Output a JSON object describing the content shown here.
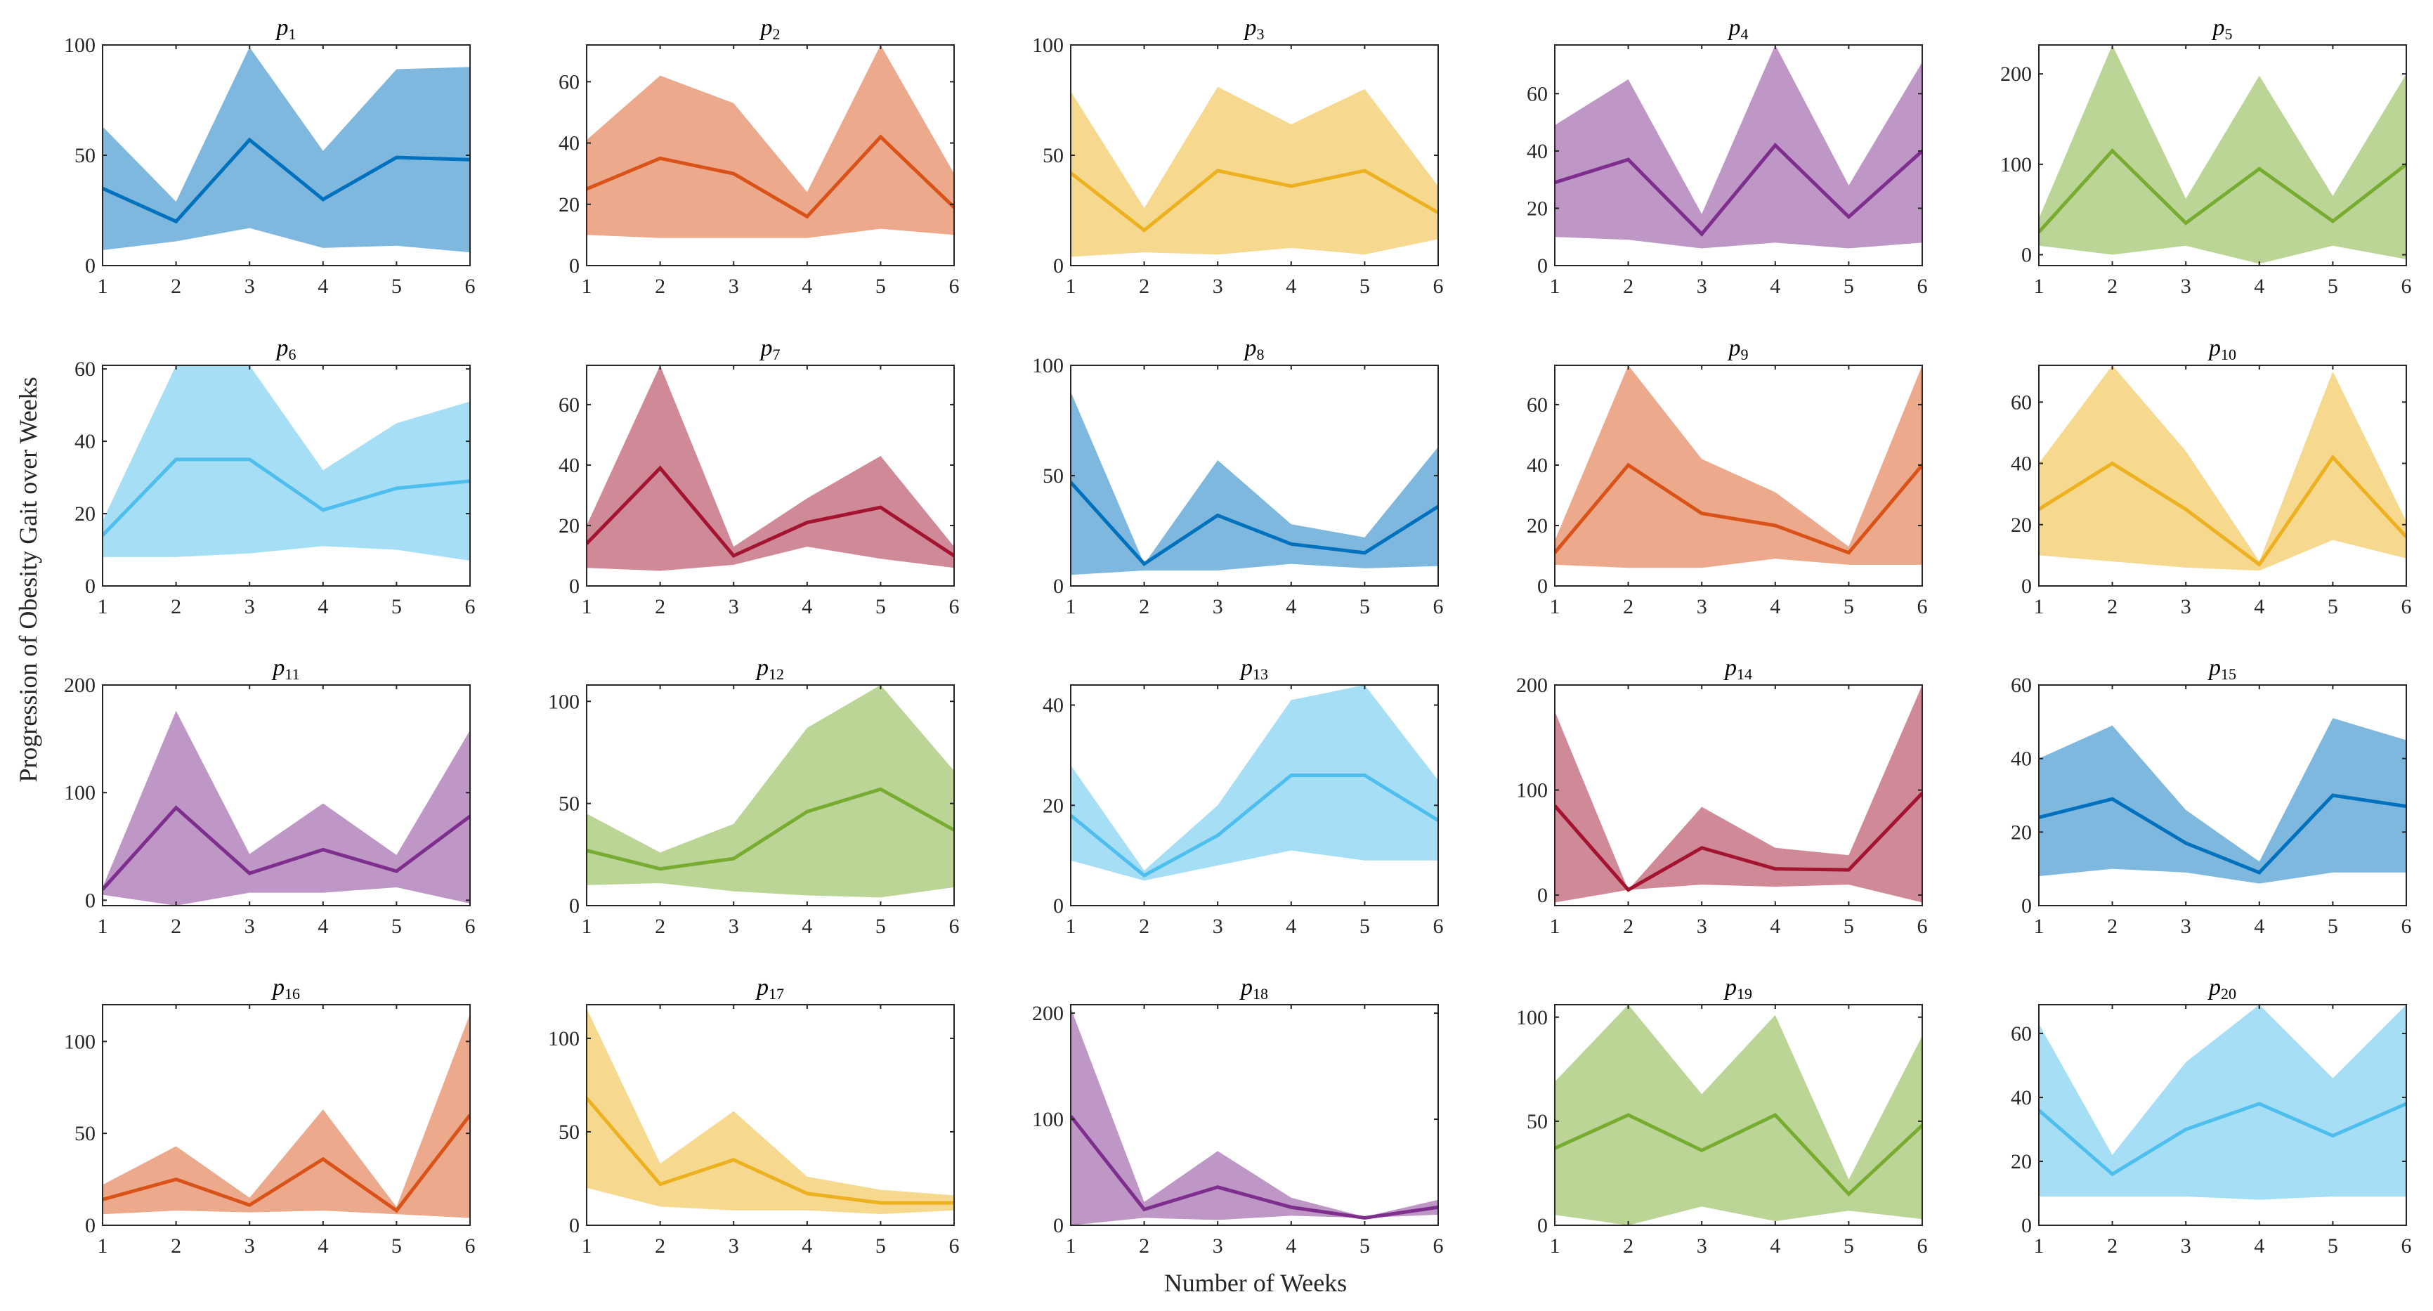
{
  "figure": {
    "ylabel": "Progression of Obesity Gait over Weeks",
    "xlabel": "Number of Weeks"
  },
  "palette": [
    "#0072BD",
    "#D95319",
    "#EDB120",
    "#7E2F8E",
    "#77AC30",
    "#4DBEEE",
    "#A2142F"
  ],
  "chart_data": [
    {
      "type": "area",
      "title": "p",
      "subscript": "1",
      "color_index": 0,
      "x": [
        1,
        2,
        3,
        4,
        5,
        6
      ],
      "ylim": [
        0,
        100
      ],
      "yticks": [
        0,
        50,
        100
      ],
      "mean": [
        35,
        20,
        57,
        30,
        49,
        48
      ],
      "lower": [
        7,
        11,
        17,
        8,
        9,
        6
      ],
      "upper": [
        63,
        29,
        99,
        52,
        89,
        90
      ]
    },
    {
      "type": "area",
      "title": "p",
      "subscript": "2",
      "color_index": 1,
      "x": [
        1,
        2,
        3,
        4,
        5,
        6
      ],
      "ylim": [
        0,
        72
      ],
      "yticks": [
        0,
        20,
        40,
        60
      ],
      "mean": [
        25,
        35,
        30,
        16,
        42,
        19
      ],
      "lower": [
        10,
        9,
        9,
        9,
        12,
        10
      ],
      "upper": [
        41,
        62,
        53,
        24,
        72,
        30
      ]
    },
    {
      "type": "area",
      "title": "p",
      "subscript": "3",
      "color_index": 2,
      "x": [
        1,
        2,
        3,
        4,
        5,
        6
      ],
      "ylim": [
        0,
        100
      ],
      "yticks": [
        0,
        50,
        100
      ],
      "mean": [
        42,
        16,
        43,
        36,
        43,
        24
      ],
      "lower": [
        4,
        6,
        5,
        8,
        5,
        12
      ],
      "upper": [
        79,
        26,
        81,
        64,
        80,
        36
      ]
    },
    {
      "type": "area",
      "title": "p",
      "subscript": "4",
      "color_index": 3,
      "x": [
        1,
        2,
        3,
        4,
        5,
        6
      ],
      "ylim": [
        0,
        77
      ],
      "yticks": [
        0,
        20,
        40,
        60
      ],
      "mean": [
        29,
        37,
        11,
        42,
        17,
        40
      ],
      "lower": [
        10,
        9,
        6,
        8,
        6,
        8
      ],
      "upper": [
        49,
        65,
        18,
        77,
        28,
        71
      ]
    },
    {
      "type": "area",
      "title": "p",
      "subscript": "5",
      "color_index": 4,
      "x": [
        1,
        2,
        3,
        4,
        5,
        6
      ],
      "ylim": [
        -12,
        232
      ],
      "yticks": [
        0,
        100,
        200
      ],
      "mean": [
        25,
        115,
        35,
        95,
        37,
        100
      ],
      "lower": [
        10,
        0,
        10,
        -10,
        10,
        -5
      ],
      "upper": [
        40,
        232,
        62,
        198,
        65,
        200
      ]
    },
    {
      "type": "area",
      "title": "p",
      "subscript": "6",
      "color_index": 5,
      "x": [
        1,
        2,
        3,
        4,
        5,
        6
      ],
      "ylim": [
        0,
        61
      ],
      "yticks": [
        0,
        20,
        40,
        60
      ],
      "mean": [
        14,
        35,
        35,
        21,
        27,
        29
      ],
      "lower": [
        8,
        8,
        9,
        11,
        10,
        7
      ],
      "upper": [
        18,
        61,
        61,
        32,
        45,
        51
      ]
    },
    {
      "type": "area",
      "title": "p",
      "subscript": "7",
      "color_index": 6,
      "x": [
        1,
        2,
        3,
        4,
        5,
        6
      ],
      "ylim": [
        0,
        73
      ],
      "yticks": [
        0,
        20,
        40,
        60
      ],
      "mean": [
        14,
        39,
        10,
        21,
        26,
        10
      ],
      "lower": [
        6,
        5,
        7,
        13,
        9,
        6
      ],
      "upper": [
        20,
        73,
        13,
        29,
        43,
        13
      ]
    },
    {
      "type": "area",
      "title": "p",
      "subscript": "8",
      "color_index": 0,
      "x": [
        1,
        2,
        3,
        4,
        5,
        6
      ],
      "ylim": [
        0,
        100
      ],
      "yticks": [
        0,
        50,
        100
      ],
      "mean": [
        47,
        10,
        32,
        19,
        15,
        36
      ],
      "lower": [
        5,
        7,
        7,
        10,
        8,
        9
      ],
      "upper": [
        88,
        10,
        57,
        28,
        22,
        63
      ]
    },
    {
      "type": "area",
      "title": "p",
      "subscript": "9",
      "color_index": 1,
      "x": [
        1,
        2,
        3,
        4,
        5,
        6
      ],
      "ylim": [
        0,
        73
      ],
      "yticks": [
        0,
        20,
        40,
        60
      ],
      "mean": [
        11,
        40,
        24,
        20,
        11,
        40
      ],
      "lower": [
        7,
        6,
        6,
        9,
        7,
        7
      ],
      "upper": [
        15,
        73,
        42,
        31,
        13,
        73
      ]
    },
    {
      "type": "area",
      "title": "p",
      "subscript": "10",
      "color_index": 2,
      "x": [
        1,
        2,
        3,
        4,
        5,
        6
      ],
      "ylim": [
        0,
        72
      ],
      "yticks": [
        0,
        20,
        40,
        60
      ],
      "mean": [
        25,
        40,
        25,
        7,
        42,
        16
      ],
      "lower": [
        10,
        8,
        6,
        5,
        15,
        9
      ],
      "upper": [
        40,
        72,
        44,
        8,
        70,
        21
      ]
    },
    {
      "type": "area",
      "title": "p",
      "subscript": "11",
      "color_index": 3,
      "x": [
        1,
        2,
        3,
        4,
        5,
        6
      ],
      "ylim": [
        -5,
        200
      ],
      "yticks": [
        0,
        100,
        200
      ],
      "mean": [
        10,
        86,
        25,
        47,
        27,
        78
      ],
      "lower": [
        5,
        -5,
        7,
        7,
        12,
        -3
      ],
      "upper": [
        12,
        176,
        43,
        90,
        42,
        158
      ]
    },
    {
      "type": "area",
      "title": "p",
      "subscript": "12",
      "color_index": 4,
      "x": [
        1,
        2,
        3,
        4,
        5,
        6
      ],
      "ylim": [
        0,
        108
      ],
      "yticks": [
        0,
        50,
        100
      ],
      "mean": [
        27,
        18,
        23,
        46,
        57,
        37
      ],
      "lower": [
        10,
        11,
        7,
        5,
        4,
        9
      ],
      "upper": [
        45,
        26,
        40,
        87,
        108,
        66
      ]
    },
    {
      "type": "area",
      "title": "p",
      "subscript": "13",
      "color_index": 5,
      "x": [
        1,
        2,
        3,
        4,
        5,
        6
      ],
      "ylim": [
        0,
        44
      ],
      "yticks": [
        0,
        20,
        40
      ],
      "mean": [
        18,
        6,
        14,
        26,
        26,
        17
      ],
      "lower": [
        9,
        5,
        8,
        11,
        9,
        9
      ],
      "upper": [
        28,
        7,
        20,
        41,
        44,
        25
      ]
    },
    {
      "type": "area",
      "title": "p",
      "subscript": "14",
      "color_index": 6,
      "x": [
        1,
        2,
        3,
        4,
        5,
        6
      ],
      "ylim": [
        -10,
        200
      ],
      "yticks": [
        0,
        100,
        200
      ],
      "mean": [
        85,
        5,
        45,
        25,
        24,
        97
      ],
      "lower": [
        -7,
        5,
        10,
        8,
        10,
        -7
      ],
      "upper": [
        175,
        5,
        84,
        45,
        38,
        200
      ]
    },
    {
      "type": "area",
      "title": "p",
      "subscript": "15",
      "color_index": 0,
      "x": [
        1,
        2,
        3,
        4,
        5,
        6
      ],
      "ylim": [
        0,
        60
      ],
      "yticks": [
        0,
        20,
        40,
        60
      ],
      "mean": [
        24,
        29,
        17,
        9,
        30,
        27
      ],
      "lower": [
        8,
        10,
        9,
        6,
        9,
        9
      ],
      "upper": [
        40,
        49,
        26,
        12,
        51,
        45
      ]
    },
    {
      "type": "area",
      "title": "p",
      "subscript": "16",
      "color_index": 1,
      "x": [
        1,
        2,
        3,
        4,
        5,
        6
      ],
      "ylim": [
        0,
        120
      ],
      "yticks": [
        0,
        50,
        100
      ],
      "mean": [
        14,
        25,
        11,
        36,
        8,
        60
      ],
      "lower": [
        6,
        8,
        7,
        8,
        6,
        4
      ],
      "upper": [
        22,
        43,
        15,
        63,
        10,
        115
      ]
    },
    {
      "type": "area",
      "title": "p",
      "subscript": "17",
      "color_index": 2,
      "x": [
        1,
        2,
        3,
        4,
        5,
        6
      ],
      "ylim": [
        0,
        118
      ],
      "yticks": [
        0,
        50,
        100
      ],
      "mean": [
        68,
        22,
        35,
        17,
        12,
        12
      ],
      "lower": [
        20,
        10,
        8,
        8,
        6,
        8
      ],
      "upper": [
        116,
        33,
        61,
        26,
        19,
        16
      ]
    },
    {
      "type": "area",
      "title": "p",
      "subscript": "18",
      "color_index": 3,
      "x": [
        1,
        2,
        3,
        4,
        5,
        6
      ],
      "ylim": [
        0,
        208
      ],
      "yticks": [
        0,
        100,
        200
      ],
      "mean": [
        103,
        15,
        36,
        17,
        7,
        17
      ],
      "lower": [
        0,
        7,
        5,
        9,
        7,
        10
      ],
      "upper": [
        205,
        22,
        70,
        26,
        8,
        24
      ]
    },
    {
      "type": "area",
      "title": "p",
      "subscript": "19",
      "color_index": 4,
      "x": [
        1,
        2,
        3,
        4,
        5,
        6
      ],
      "ylim": [
        0,
        106
      ],
      "yticks": [
        0,
        50,
        100
      ],
      "mean": [
        37,
        53,
        36,
        53,
        15,
        48
      ],
      "lower": [
        5,
        0,
        9,
        2,
        7,
        3
      ],
      "upper": [
        69,
        106,
        63,
        101,
        22,
        91
      ]
    },
    {
      "type": "area",
      "title": "p",
      "subscript": "20",
      "color_index": 5,
      "x": [
        1,
        2,
        3,
        4,
        5,
        6
      ],
      "ylim": [
        0,
        69
      ],
      "yticks": [
        0,
        20,
        40,
        60
      ],
      "mean": [
        36,
        16,
        30,
        38,
        28,
        38
      ],
      "lower": [
        9,
        9,
        9,
        8,
        9,
        9
      ],
      "upper": [
        63,
        22,
        51,
        69,
        46,
        69
      ]
    }
  ]
}
